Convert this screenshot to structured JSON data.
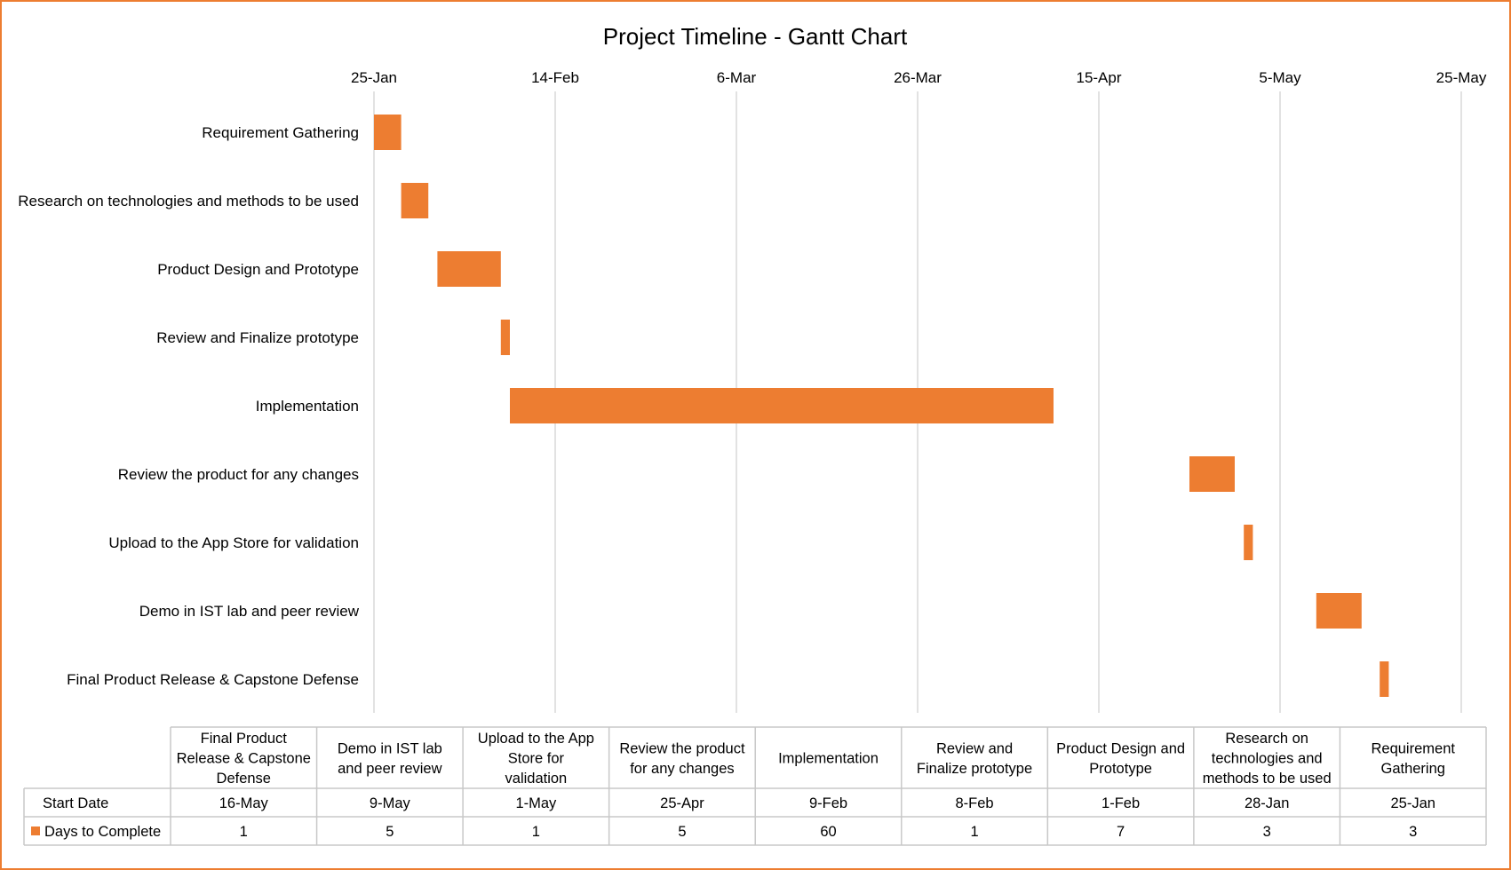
{
  "chart_data": {
    "type": "bar",
    "subtype": "gantt",
    "title": "Project Timeline - Gantt Chart",
    "x_axis": {
      "kind": "date",
      "position": "top",
      "range": [
        "25-Jan",
        "25-May"
      ],
      "tick_labels": [
        "25-Jan",
        "14-Feb",
        "6-Mar",
        "26-Mar",
        "15-Apr",
        "5-May",
        "25-May"
      ],
      "grid": true
    },
    "tasks": [
      {
        "name": "Requirement Gathering",
        "start": "25-Jan",
        "days": 3
      },
      {
        "name": "Research on technologies and methods to be used",
        "start": "28-Jan",
        "days": 3
      },
      {
        "name": "Product Design and Prototype",
        "start": "1-Feb",
        "days": 7
      },
      {
        "name": "Review and Finalize prototype",
        "start": "8-Feb",
        "days": 1
      },
      {
        "name": "Implementation",
        "start": "9-Feb",
        "days": 60
      },
      {
        "name": "Review the product for any changes",
        "start": "25-Apr",
        "days": 5
      },
      {
        "name": "Upload to the App Store for validation",
        "start": "1-May",
        "days": 1
      },
      {
        "name": "Demo in IST lab and peer review",
        "start": "9-May",
        "days": 5
      },
      {
        "name": "Final Product Release & Capstone Defense",
        "start": "16-May",
        "days": 1
      }
    ],
    "data_table": {
      "columns": [
        "Final Product Release & Capstone Defense",
        "Demo in IST lab and peer review",
        "Upload to the App Store for validation",
        "Review the product for any changes",
        "Implementation",
        "Review and Finalize prototype",
        "Product Design and Prototype",
        "Research on technologies and methods to be used",
        "Requirement Gathering"
      ],
      "rows": [
        {
          "label": "Start Date",
          "values": [
            "16-May",
            "9-May",
            "1-May",
            "25-Apr",
            "9-Feb",
            "8-Feb",
            "1-Feb",
            "28-Jan",
            "25-Jan"
          ]
        },
        {
          "label": "Days to Complete",
          "values": [
            "1",
            "5",
            "1",
            "5",
            "60",
            "1",
            "7",
            "3",
            "3"
          ],
          "legend_color": "#ed7d31"
        }
      ]
    },
    "series_color": "#ed7d31"
  }
}
